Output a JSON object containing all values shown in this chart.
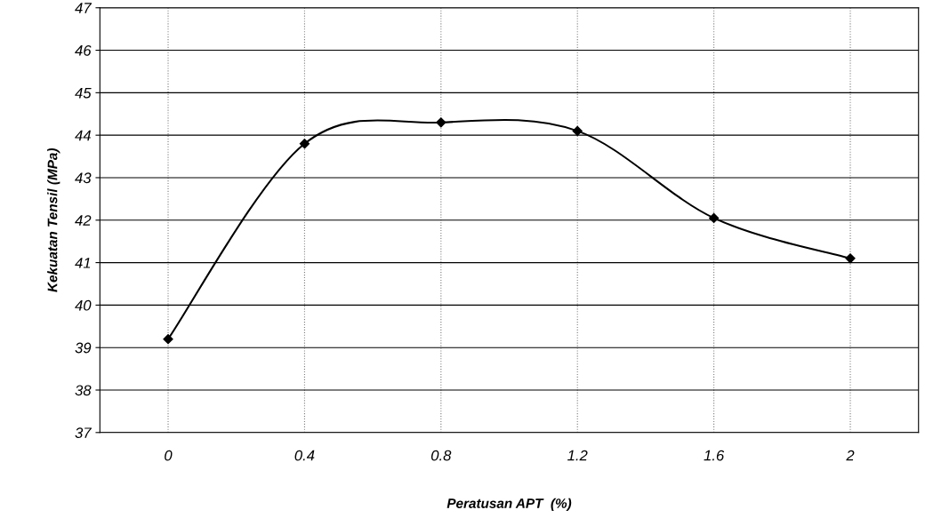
{
  "chart_data": {
    "type": "line",
    "xlabel": "Peratusan APT  (%)",
    "ylabel": "Kekuatan Tensil (MPa)",
    "categories": [
      "0",
      "0.4",
      "0.8",
      "1.2",
      "1.6",
      "2"
    ],
    "series": [
      {
        "color": "#000000",
        "values": [
          39.2,
          43.8,
          44.3,
          44.1,
          42.05,
          41.1
        ]
      }
    ],
    "ylim": [
      37,
      47
    ],
    "yticks": [
      37,
      38,
      39,
      40,
      41,
      42,
      43,
      44,
      45,
      46,
      47
    ],
    "grid": true,
    "marker": "diamond",
    "line_style": "solid"
  }
}
